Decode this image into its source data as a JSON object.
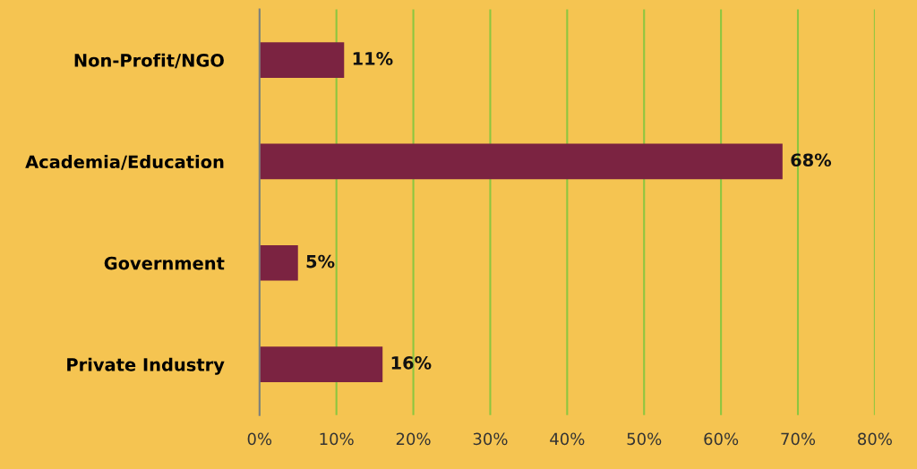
{
  "chart_data": {
    "type": "bar",
    "orientation": "horizontal",
    "categories": [
      "Non-Profit/NGO",
      "Academia/Education",
      "Government",
      "Private Industry"
    ],
    "values": [
      11,
      68,
      5,
      16
    ],
    "value_labels": [
      "11%",
      "68%",
      "5%",
      "16%"
    ],
    "color": "#7b2341",
    "xlim": [
      0,
      80
    ],
    "xticks": [
      {
        "value": 0,
        "label": "0%"
      },
      {
        "value": 10,
        "label": "10%"
      },
      {
        "value": 20,
        "label": "20%"
      },
      {
        "value": 30,
        "label": "30%"
      },
      {
        "value": 40,
        "label": "40%"
      },
      {
        "value": 50,
        "label": "50%"
      },
      {
        "value": 60,
        "label": "60%"
      },
      {
        "value": 70,
        "label": "70%"
      },
      {
        "value": 80,
        "label": "80%"
      }
    ],
    "grid": "x",
    "legend": false
  }
}
